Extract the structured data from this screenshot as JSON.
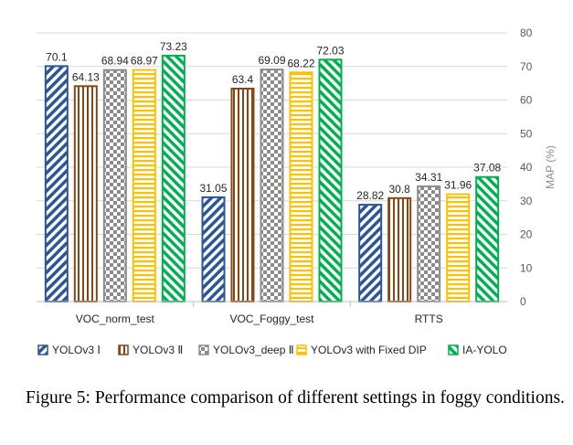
{
  "chart_data": {
    "type": "bar",
    "categories": [
      "VOC_norm_test",
      "VOC_Foggy_test",
      "RTTS"
    ],
    "series": [
      {
        "name": "YOLOv3 Ⅰ",
        "values": [
          70.1,
          31.05,
          28.82
        ],
        "color": "#2e5597",
        "pattern": "diagonal-stripes"
      },
      {
        "name": "YOLOv3 Ⅱ",
        "values": [
          64.13,
          63.4,
          30.8
        ],
        "color": "#8b4513",
        "pattern": "vertical-stripes"
      },
      {
        "name": "YOLOv3_deep Ⅱ",
        "values": [
          68.94,
          69.09,
          34.31
        ],
        "color": "#8c8c8c",
        "pattern": "checkerboard"
      },
      {
        "name": "YOLOv3 with Fixed DIP",
        "values": [
          68.97,
          68.22,
          31.96
        ],
        "color": "#ffc000",
        "pattern": "horizontal-stripes"
      },
      {
        "name": "IA-YOLO",
        "values": [
          73.23,
          72.03,
          37.08
        ],
        "color": "#00b050",
        "pattern": "diagonal-stripes-reverse"
      }
    ],
    "value_labels": [
      [
        "70.1",
        "31.05",
        "28.82"
      ],
      [
        "64.13",
        "63.4",
        "30.8"
      ],
      [
        "68.94",
        "69.09",
        "34.31"
      ],
      [
        "68.97",
        "68.22",
        "31.96"
      ],
      [
        "73.23",
        "72.03",
        "37.08"
      ]
    ],
    "ylabel": "MAP (%)",
    "ylim": [
      0,
      80
    ],
    "yticks": [
      "0",
      "10",
      "20",
      "30",
      "40",
      "50",
      "60",
      "70",
      "80"
    ],
    "y_axis_side": "right",
    "grid": true,
    "legend_position": "bottom"
  },
  "caption": "Figure 5: Performance comparison of different settings in foggy conditions."
}
